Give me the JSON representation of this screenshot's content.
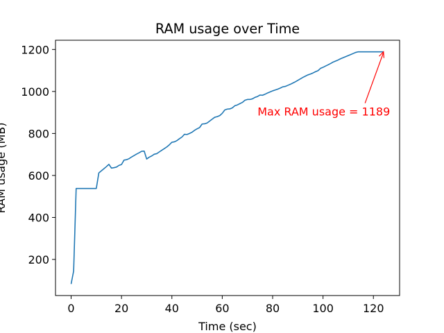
{
  "chart_data": {
    "type": "line",
    "title": "RAM usage over Time",
    "xlabel": "Time (sec)",
    "ylabel": "RAM usage (MB)",
    "xlim": [
      -6.2,
      130.4
    ],
    "ylim": [
      28,
      1244
    ],
    "xticks": [
      0,
      20,
      40,
      60,
      80,
      100,
      120
    ],
    "yticks": [
      200,
      400,
      600,
      800,
      1000,
      1200
    ],
    "grid": false,
    "line_color": "#1f77b4",
    "annotation_color": "#ff0000",
    "series": [
      {
        "x": [
          0,
          1,
          2,
          3,
          4,
          5,
          6,
          7,
          8,
          9,
          10,
          11,
          12,
          13,
          14,
          15,
          16,
          17,
          18,
          19,
          20,
          21,
          22,
          23,
          24,
          25,
          26,
          27,
          28,
          29,
          30,
          31,
          32,
          33,
          34,
          35,
          36,
          37,
          38,
          39,
          40,
          41,
          42,
          43,
          44,
          45,
          46,
          47,
          48,
          49,
          50,
          51,
          52,
          53,
          54,
          55,
          56,
          57,
          58,
          59,
          60,
          61,
          62,
          63,
          64,
          65,
          66,
          67,
          68,
          69,
          70,
          71,
          72,
          73,
          74,
          75,
          76,
          77,
          78,
          79,
          80,
          81,
          82,
          83,
          84,
          85,
          86,
          87,
          88,
          89,
          90,
          91,
          92,
          93,
          94,
          95,
          96,
          97,
          98,
          99,
          100,
          101,
          102,
          103,
          104,
          105,
          106,
          107,
          108,
          109,
          110,
          111,
          112,
          113,
          114,
          115,
          116,
          117,
          118,
          119,
          120,
          121,
          122,
          123,
          124
        ],
        "values": [
          83,
          145,
          538,
          538,
          538,
          538,
          538,
          538,
          538,
          538,
          538,
          612,
          622,
          632,
          642,
          653,
          635,
          637,
          640,
          648,
          652,
          673,
          675,
          680,
          688,
          695,
          702,
          708,
          715,
          716,
          678,
          687,
          693,
          701,
          704,
          712,
          720,
          728,
          736,
          746,
          758,
          760,
          766,
          775,
          783,
          796,
          795,
          800,
          806,
          815,
          822,
          828,
          845,
          846,
          850,
          859,
          868,
          877,
          880,
          885,
          896,
          912,
          916,
          917,
          922,
          932,
          936,
          942,
          948,
          958,
          962,
          962,
          965,
          972,
          976,
          983,
          982,
          987,
          993,
          998,
          1003,
          1007,
          1011,
          1016,
          1022,
          1024,
          1029,
          1034,
          1040,
          1046,
          1053,
          1060,
          1067,
          1073,
          1079,
          1083,
          1088,
          1094,
          1099,
          1110,
          1115,
          1121,
          1127,
          1133,
          1140,
          1145,
          1150,
          1156,
          1161,
          1166,
          1171,
          1176,
          1181,
          1186,
          1189,
          1189,
          1189,
          1189,
          1189,
          1189,
          1189,
          1189,
          1189,
          1189,
          1189
        ]
      }
    ],
    "annotation": {
      "text": "Max RAM usage = 1189",
      "point": [
        124,
        1189
      ],
      "text_at": [
        74,
        885
      ]
    }
  }
}
